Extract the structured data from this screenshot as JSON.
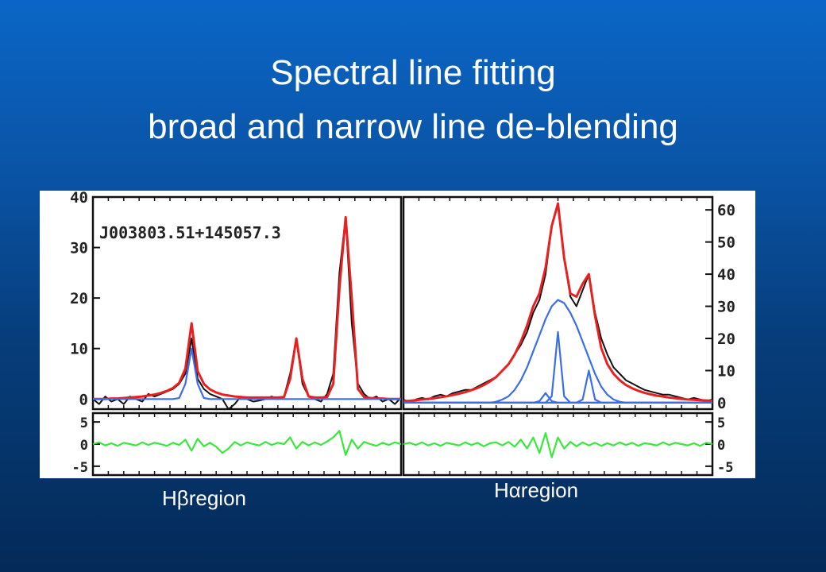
{
  "slide": {
    "title_line1": "Spectral line fitting",
    "title_line2": "broad and narrow line de-blending"
  },
  "captions": {
    "left": "Hβregion",
    "right": "Hαregion"
  },
  "chart_data": [
    {
      "type": "line",
      "panel": "left-main",
      "annotation": "J003803.51+145057.3",
      "yticks": [
        "40",
        "30",
        "20",
        "10",
        "0"
      ],
      "ylim": [
        -2,
        40
      ],
      "x": [
        0,
        2,
        4,
        6,
        8,
        10,
        12,
        14,
        16,
        18,
        20,
        22,
        24,
        26,
        28,
        30,
        32,
        34,
        36,
        38,
        40,
        42,
        44,
        46,
        48,
        50,
        52,
        54,
        56,
        58,
        60,
        62,
        64,
        66,
        68,
        70,
        72,
        74,
        76,
        78,
        80,
        82,
        84,
        86,
        88,
        90,
        92,
        94,
        96,
        98,
        100
      ],
      "series": [
        {
          "color": "#111111",
          "values": [
            0,
            -1,
            0.5,
            -0.5,
            0,
            -1,
            0.5,
            0,
            -0.5,
            1,
            0.5,
            1,
            1.5,
            2,
            3,
            5,
            12,
            4,
            2,
            1,
            0.5,
            0,
            -2,
            -1,
            0.5,
            0,
            -0.5,
            -0.3,
            0,
            0.5,
            0,
            0.5,
            5,
            12,
            3,
            0.5,
            0,
            -0.5,
            1,
            5,
            25,
            36,
            15,
            3,
            1,
            0,
            0.5,
            -0.5,
            0,
            -1,
            0.3
          ]
        },
        {
          "color": "#e82020",
          "values": [
            0,
            0,
            0,
            0.1,
            0.1,
            0.2,
            0.3,
            0.4,
            0.5,
            0.7,
            0.9,
            1.2,
            1.6,
            2.2,
            3.2,
            6,
            15,
            5.5,
            3,
            1.9,
            1.3,
            0.9,
            0.7,
            0.5,
            0.4,
            0.3,
            0.3,
            0.3,
            0.3,
            0.3,
            0.3,
            0.4,
            4,
            12,
            4,
            0.5,
            0.3,
            0.3,
            0.4,
            3,
            22,
            36,
            20,
            2,
            0.4,
            0.2,
            0.1,
            0.1,
            0,
            0,
            0
          ]
        },
        {
          "color": "#3a6ee8",
          "values": [
            0,
            0,
            0,
            0,
            0,
            0,
            0,
            0,
            0,
            0,
            0,
            0,
            0,
            0,
            0.2,
            3,
            10,
            3,
            0.2,
            0,
            0,
            0,
            0,
            0,
            0,
            0,
            0,
            0,
            0,
            0,
            0,
            0,
            0,
            0,
            0,
            0,
            0,
            0,
            0,
            0,
            0,
            0,
            0,
            0,
            0,
            0,
            0,
            0,
            0,
            0,
            0
          ]
        }
      ]
    },
    {
      "type": "line",
      "panel": "right-main",
      "yticks": [
        "60",
        "50",
        "40",
        "30",
        "20",
        "10",
        "0"
      ],
      "ylim": [
        -2,
        64
      ],
      "x": [
        0,
        2,
        4,
        6,
        8,
        10,
        12,
        14,
        16,
        18,
        20,
        22,
        24,
        26,
        28,
        30,
        32,
        34,
        36,
        38,
        40,
        42,
        44,
        46,
        48,
        50,
        52,
        54,
        56,
        58,
        60,
        62,
        64,
        66,
        68,
        70,
        72,
        74,
        76,
        78,
        80,
        82,
        84,
        86,
        88,
        90,
        92,
        94,
        96,
        98,
        100
      ],
      "series": [
        {
          "color": "#111111",
          "values": [
            1,
            0,
            1,
            1.5,
            1,
            2,
            2.5,
            2,
            3,
            3.5,
            4,
            4,
            5,
            6,
            7,
            8,
            10,
            12,
            15,
            18,
            22,
            28,
            32,
            40,
            55,
            62,
            45,
            33,
            30,
            35,
            40,
            28,
            20,
            15,
            11,
            9,
            7,
            6,
            5,
            4,
            3.5,
            3,
            2.5,
            2.5,
            2,
            1.5,
            1,
            1.5,
            1,
            0.5,
            1
          ]
        },
        {
          "color": "#e82020",
          "values": [
            0.5,
            0.6,
            0.8,
            1,
            1.2,
            1.4,
            1.7,
            2,
            2.4,
            2.8,
            3.3,
            3.9,
            4.6,
            5.5,
            6.6,
            8,
            10,
            12,
            15,
            19,
            24,
            30,
            34,
            42,
            55,
            62,
            45,
            34,
            33,
            37,
            40,
            27,
            17,
            12,
            9,
            7,
            5.5,
            4.5,
            3.7,
            3.1,
            2.6,
            2.2,
            1.9,
            1.6,
            1.4,
            1.2,
            1,
            0.9,
            0.8,
            0.7,
            0.6
          ]
        },
        {
          "color": "#3a6ee8",
          "values": [
            0,
            0,
            0,
            0,
            0,
            0,
            0,
            0,
            0,
            0,
            0,
            0,
            0,
            0,
            0,
            0.3,
            1,
            2,
            4,
            7,
            11,
            16,
            21,
            26,
            30,
            32,
            31,
            28,
            24,
            19,
            14,
            9,
            5,
            2.5,
            1,
            0.3,
            0,
            0,
            0,
            0,
            0,
            0,
            0,
            0,
            0,
            0,
            0,
            0,
            0,
            0,
            0
          ]
        },
        {
          "color": "#3a6ee8",
          "values": [
            0,
            0,
            0,
            0,
            0,
            0,
            0,
            0,
            0,
            0,
            0,
            0,
            0,
            0,
            0,
            0,
            0,
            0,
            0,
            0,
            0,
            0,
            0.5,
            3,
            0.5,
            0,
            0,
            0,
            0,
            0,
            0,
            0,
            0,
            0,
            0,
            0,
            0,
            0,
            0,
            0,
            0,
            0,
            0,
            0,
            0,
            0,
            0,
            0,
            0,
            0,
            0
          ]
        },
        {
          "color": "#3a6ee8",
          "values": [
            0,
            0,
            0,
            0,
            0,
            0,
            0,
            0,
            0,
            0,
            0,
            0,
            0,
            0,
            0,
            0,
            0,
            0,
            0,
            0,
            0,
            0,
            0,
            0,
            2,
            22,
            2,
            0,
            0,
            0,
            0,
            0,
            0,
            0,
            0,
            0,
            0,
            0,
            0,
            0,
            0,
            0,
            0,
            0,
            0,
            0,
            0,
            0,
            0,
            0,
            0
          ]
        },
        {
          "color": "#3a6ee8",
          "values": [
            0,
            0,
            0,
            0,
            0,
            0,
            0,
            0,
            0,
            0,
            0,
            0,
            0,
            0,
            0,
            0,
            0,
            0,
            0,
            0,
            0,
            0,
            0,
            0,
            0,
            0,
            0,
            0,
            0,
            1,
            10,
            1,
            0,
            0,
            0,
            0,
            0,
            0,
            0,
            0,
            0,
            0,
            0,
            0,
            0,
            0,
            0,
            0,
            0,
            0,
            0
          ]
        }
      ]
    },
    {
      "type": "line",
      "panel": "left-residual",
      "yticks": [
        "5",
        "0",
        "-5"
      ],
      "ylim": [
        -7,
        7
      ],
      "x": [
        0,
        2,
        4,
        6,
        8,
        10,
        12,
        14,
        16,
        18,
        20,
        22,
        24,
        26,
        28,
        30,
        32,
        34,
        36,
        38,
        40,
        42,
        44,
        46,
        48,
        50,
        52,
        54,
        56,
        58,
        60,
        62,
        64,
        66,
        68,
        70,
        72,
        74,
        76,
        78,
        80,
        82,
        84,
        86,
        88,
        90,
        92,
        94,
        96,
        98,
        100
      ],
      "series": [
        {
          "color": "#39e83b",
          "values": [
            0,
            0.4,
            -0.3,
            0.2,
            -0.4,
            0.3,
            0,
            -0.3,
            0.4,
            -0.2,
            0.3,
            0,
            -0.4,
            0.3,
            -0.2,
            1,
            -1.5,
            1.2,
            -0.5,
            0.3,
            -0.6,
            -2,
            -1,
            0.5,
            -0.3,
            0.4,
            0,
            -0.3,
            0.5,
            -0.2,
            0.3,
            0,
            1.5,
            -1,
            0.5,
            -0.3,
            0.4,
            -0.2,
            0.6,
            1.5,
            3,
            -2.5,
            1,
            -1,
            0.5,
            0,
            -0.4,
            0.3,
            -0.2,
            0.4,
            0
          ]
        }
      ]
    },
    {
      "type": "line",
      "panel": "right-residual",
      "yticks": [
        "5",
        "0",
        "-5"
      ],
      "ylim": [
        -7,
        7
      ],
      "x": [
        0,
        2,
        4,
        6,
        8,
        10,
        12,
        14,
        16,
        18,
        20,
        22,
        24,
        26,
        28,
        30,
        32,
        34,
        36,
        38,
        40,
        42,
        44,
        46,
        48,
        50,
        52,
        54,
        56,
        58,
        60,
        62,
        64,
        66,
        68,
        70,
        72,
        74,
        76,
        78,
        80,
        82,
        84,
        86,
        88,
        90,
        92,
        94,
        96,
        98,
        100
      ],
      "series": [
        {
          "color": "#39e83b",
          "values": [
            0,
            0.3,
            -0.2,
            0.4,
            -0.3,
            0.2,
            -0.4,
            0.3,
            0,
            -0.3,
            0.4,
            -0.2,
            0.3,
            -0.5,
            0.2,
            0.4,
            -0.3,
            0.5,
            -0.6,
            1,
            -1,
            1.5,
            -2,
            2.5,
            -3,
            1.5,
            -1,
            0.5,
            -0.5,
            0.4,
            -0.3,
            0.3,
            -0.4,
            0.2,
            -0.3,
            0.4,
            -0.2,
            0.3,
            -0.4,
            0.2,
            0,
            -0.3,
            0.4,
            -0.2,
            0.3,
            0,
            -0.3,
            0.2,
            -0.4,
            0.3,
            0
          ]
        }
      ]
    }
  ]
}
